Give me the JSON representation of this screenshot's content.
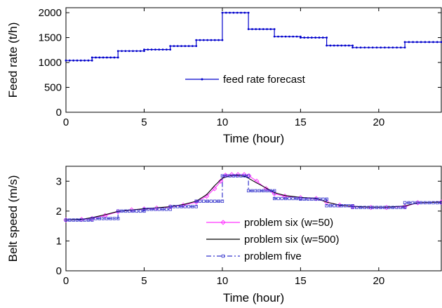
{
  "chart_data": [
    {
      "type": "line",
      "xlabel": "Time (hour)",
      "ylabel": "Feed rate (t/h)",
      "xlim": [
        0,
        24
      ],
      "ylim": [
        0,
        2100
      ],
      "xticks": [
        0,
        5,
        10,
        15,
        20
      ],
      "yticks": [
        0,
        500,
        1000,
        1500,
        2000
      ],
      "legend": "center",
      "series": [
        {
          "name": "feed rate forecast",
          "color": "#0000cc",
          "style": "step-with-dots",
          "steps": [
            {
              "x0": 0,
              "x1": 1.67,
              "y": 1040
            },
            {
              "x0": 1.67,
              "x1": 3.33,
              "y": 1100
            },
            {
              "x0": 3.33,
              "x1": 5.0,
              "y": 1230
            },
            {
              "x0": 5.0,
              "x1": 6.67,
              "y": 1260
            },
            {
              "x0": 6.67,
              "x1": 8.33,
              "y": 1330
            },
            {
              "x0": 8.33,
              "x1": 10.0,
              "y": 1450
            },
            {
              "x0": 10.0,
              "x1": 11.67,
              "y": 2000
            },
            {
              "x0": 11.67,
              "x1": 13.33,
              "y": 1670
            },
            {
              "x0": 13.33,
              "x1": 15.0,
              "y": 1520
            },
            {
              "x0": 15.0,
              "x1": 16.67,
              "y": 1500
            },
            {
              "x0": 16.67,
              "x1": 18.33,
              "y": 1340
            },
            {
              "x0": 18.33,
              "x1": 21.67,
              "y": 1300
            },
            {
              "x0": 21.67,
              "x1": 24.0,
              "y": 1410
            }
          ]
        }
      ]
    },
    {
      "type": "line",
      "xlabel": "Time (hour)",
      "ylabel": "Belt speed (m/s)",
      "xlim": [
        0,
        24
      ],
      "ylim": [
        0,
        3.5
      ],
      "xticks": [
        0,
        5,
        10,
        15,
        20
      ],
      "yticks": [
        0,
        1,
        2,
        3
      ],
      "legend": "bottom-center",
      "series": [
        {
          "name": "problem six (w=50)",
          "color": "#ff33ff",
          "style": "line-diamond",
          "x": [
            0,
            1,
            1.67,
            2.5,
            3.33,
            4.2,
            5.0,
            5.8,
            6.67,
            7.5,
            8.33,
            9.0,
            9.5,
            9.9,
            10.2,
            10.6,
            11.0,
            11.4,
            11.7,
            12.2,
            12.8,
            13.33,
            14.0,
            15.0,
            16.0,
            16.67,
            17.5,
            18.33,
            19.5,
            20.5,
            21.67,
            22.5,
            24.0
          ],
          "y": [
            1.7,
            1.72,
            1.75,
            1.85,
            1.98,
            2.04,
            2.07,
            2.1,
            2.14,
            2.2,
            2.3,
            2.5,
            2.75,
            3.0,
            3.2,
            3.22,
            3.22,
            3.22,
            3.18,
            3.0,
            2.75,
            2.58,
            2.5,
            2.45,
            2.42,
            2.3,
            2.2,
            2.15,
            2.12,
            2.12,
            2.15,
            2.28,
            2.3
          ]
        },
        {
          "name": "problem six (w=500)",
          "color": "#000000",
          "style": "line",
          "x": [
            0,
            1,
            1.67,
            2.5,
            3.33,
            4.2,
            5.0,
            5.8,
            6.67,
            7.5,
            8.33,
            9.0,
            9.5,
            10.0,
            10.5,
            11.0,
            11.5,
            12.0,
            12.7,
            13.33,
            14.0,
            15.0,
            16.0,
            16.67,
            17.5,
            18.33,
            19.5,
            20.5,
            21.67,
            22.5,
            24.0
          ],
          "y": [
            1.7,
            1.73,
            1.78,
            1.88,
            1.99,
            2.04,
            2.08,
            2.11,
            2.15,
            2.22,
            2.33,
            2.55,
            2.85,
            3.1,
            3.18,
            3.2,
            3.15,
            3.0,
            2.8,
            2.62,
            2.52,
            2.46,
            2.43,
            2.3,
            2.2,
            2.16,
            2.13,
            2.13,
            2.17,
            2.28,
            2.3
          ]
        },
        {
          "name": "problem five",
          "color": "#3333cc",
          "style": "step-dashdot-square",
          "steps": [
            {
              "x0": 0,
              "x1": 1.67,
              "y": 1.7
            },
            {
              "x0": 1.67,
              "x1": 3.33,
              "y": 1.75
            },
            {
              "x0": 3.33,
              "x1": 5.0,
              "y": 2.0
            },
            {
              "x0": 5.0,
              "x1": 6.67,
              "y": 2.06
            },
            {
              "x0": 6.67,
              "x1": 8.33,
              "y": 2.15
            },
            {
              "x0": 8.33,
              "x1": 10.0,
              "y": 2.33
            },
            {
              "x0": 10.0,
              "x1": 11.67,
              "y": 3.18
            },
            {
              "x0": 11.67,
              "x1": 13.33,
              "y": 2.68
            },
            {
              "x0": 13.33,
              "x1": 15.0,
              "y": 2.42
            },
            {
              "x0": 15.0,
              "x1": 16.67,
              "y": 2.4
            },
            {
              "x0": 16.67,
              "x1": 18.33,
              "y": 2.18
            },
            {
              "x0": 18.33,
              "x1": 21.67,
              "y": 2.12
            },
            {
              "x0": 21.67,
              "x1": 24.0,
              "y": 2.28
            }
          ]
        }
      ]
    }
  ]
}
